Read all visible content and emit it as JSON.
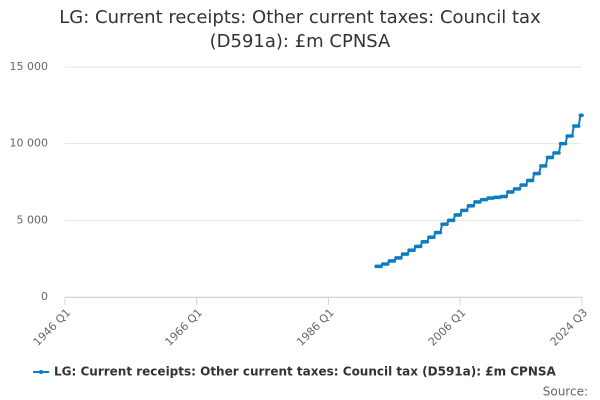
{
  "chart_data": {
    "type": "line",
    "title": "LG: Current receipts: Other current taxes: Council tax (D591a): £m CPNSA",
    "source": "Source:",
    "xlim": [
      "1946 Q1",
      "2024 Q3"
    ],
    "xticks": [
      "1946 Q1",
      "1966 Q1",
      "1986 Q1",
      "2006 Q1",
      "2024 Q3"
    ],
    "ylim": [
      0,
      15000
    ],
    "yticks": [
      0,
      {
        "value": 5000,
        "label": "5 000"
      },
      {
        "value": 10000,
        "label": "10 000"
      },
      {
        "value": 15000,
        "label": "15 000"
      }
    ],
    "grid": true,
    "legend": "bottom",
    "x": [
      "1993 Q2",
      "1993 Q3",
      "1993 Q4",
      "1994 Q1",
      "1994 Q2",
      "1994 Q3",
      "1994 Q4",
      "1995 Q1",
      "1995 Q2",
      "1995 Q3",
      "1995 Q4",
      "1996 Q1",
      "1996 Q2",
      "1996 Q3",
      "1996 Q4",
      "1997 Q1",
      "1997 Q2",
      "1997 Q3",
      "1997 Q4",
      "1998 Q1",
      "1998 Q2",
      "1998 Q3",
      "1998 Q4",
      "1999 Q1",
      "1999 Q2",
      "1999 Q3",
      "1999 Q4",
      "2000 Q1",
      "2000 Q2",
      "2000 Q3",
      "2000 Q4",
      "2001 Q1",
      "2001 Q2",
      "2001 Q3",
      "2001 Q4",
      "2002 Q1",
      "2002 Q2",
      "2002 Q3",
      "2002 Q4",
      "2003 Q1",
      "2003 Q2",
      "2003 Q3",
      "2003 Q4",
      "2004 Q1",
      "2004 Q2",
      "2004 Q3",
      "2004 Q4",
      "2005 Q1",
      "2005 Q2",
      "2005 Q3",
      "2005 Q4",
      "2006 Q1",
      "2006 Q2",
      "2006 Q3",
      "2006 Q4",
      "2007 Q1",
      "2007 Q2",
      "2007 Q3",
      "2007 Q4",
      "2008 Q1",
      "2008 Q2",
      "2008 Q3",
      "2008 Q4",
      "2009 Q1",
      "2009 Q2",
      "2009 Q3",
      "2009 Q4",
      "2010 Q1",
      "2010 Q2",
      "2010 Q3",
      "2010 Q4",
      "2011 Q1",
      "2011 Q2",
      "2011 Q3",
      "2011 Q4",
      "2012 Q1",
      "2012 Q2",
      "2012 Q3",
      "2012 Q4",
      "2013 Q1",
      "2013 Q2",
      "2013 Q3",
      "2013 Q4",
      "2014 Q1",
      "2014 Q2",
      "2014 Q3",
      "2014 Q4",
      "2015 Q1",
      "2015 Q2",
      "2015 Q3",
      "2015 Q4",
      "2016 Q1",
      "2016 Q2",
      "2016 Q3",
      "2016 Q4",
      "2017 Q1",
      "2017 Q2",
      "2017 Q3",
      "2017 Q4",
      "2018 Q1",
      "2018 Q2",
      "2018 Q3",
      "2018 Q4",
      "2019 Q1",
      "2019 Q2",
      "2019 Q3",
      "2019 Q4",
      "2020 Q1",
      "2020 Q2",
      "2020 Q3",
      "2020 Q4",
      "2021 Q1",
      "2021 Q2",
      "2021 Q3",
      "2021 Q4",
      "2022 Q1",
      "2022 Q2",
      "2022 Q3",
      "2022 Q4",
      "2023 Q1",
      "2023 Q2",
      "2023 Q3",
      "2023 Q4",
      "2024 Q1",
      "2024 Q2",
      "2024 Q3"
    ],
    "series": [
      {
        "name": "LG: Current receipts: Other current taxes: Council tax (D591a): £m CPNSA",
        "color": "#0f7cbf",
        "values": [
          2000,
          2000,
          2000,
          2000,
          2150,
          2150,
          2150,
          2150,
          2350,
          2350,
          2350,
          2350,
          2550,
          2550,
          2550,
          2550,
          2800,
          2800,
          2800,
          2800,
          3050,
          3050,
          3050,
          3050,
          3300,
          3300,
          3300,
          3300,
          3600,
          3600,
          3600,
          3600,
          3900,
          3900,
          3900,
          3900,
          4200,
          4200,
          4200,
          4200,
          4750,
          4750,
          4750,
          4750,
          5000,
          5000,
          5000,
          5000,
          5350,
          5350,
          5350,
          5350,
          5650,
          5650,
          5650,
          5650,
          5950,
          5950,
          5950,
          5950,
          6200,
          6200,
          6200,
          6200,
          6350,
          6350,
          6350,
          6350,
          6450,
          6450,
          6450,
          6450,
          6500,
          6500,
          6500,
          6500,
          6550,
          6550,
          6550,
          6550,
          6850,
          6850,
          6850,
          6850,
          7050,
          7050,
          7050,
          7050,
          7300,
          7300,
          7300,
          7300,
          7600,
          7600,
          7600,
          7600,
          8050,
          8050,
          8050,
          8050,
          8550,
          8550,
          8550,
          8550,
          9100,
          9100,
          9100,
          9100,
          9400,
          9400,
          9400,
          9400,
          10000,
          10000,
          10000,
          10000,
          10500,
          10500,
          10500,
          10500,
          11150,
          11150,
          11150,
          11150,
          11850,
          11850
        ]
      }
    ]
  }
}
